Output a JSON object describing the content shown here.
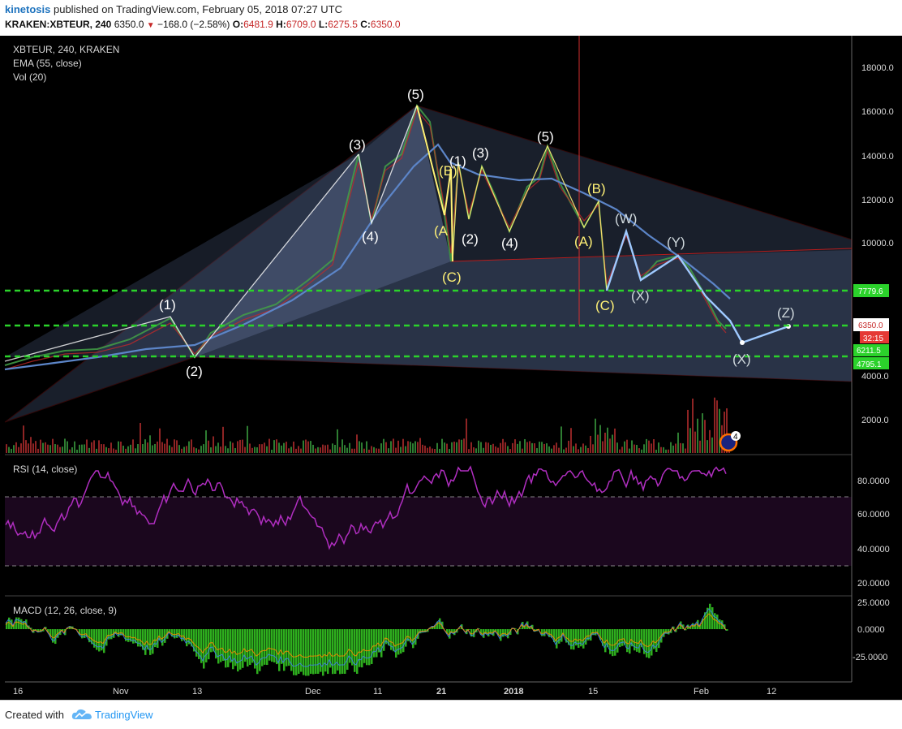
{
  "header": {
    "author": "kinetosis",
    "published": "published on TradingView.com, February 05, 2018 07:27 UTC",
    "symbol": "KRAKEN:XBTEUR, 240",
    "last": "6350.0",
    "change": "−168.0 (−2.58%)",
    "o_label": "O:",
    "o": "6481.9",
    "h_label": "H:",
    "h": "6709.0",
    "l_label": "L:",
    "l": "6275.5",
    "c_label": "C:",
    "c": "6350.0"
  },
  "legend": {
    "line1": "XBTEUR, 240, KRAKEN",
    "line2": "EMA (55, close)",
    "line3": "Vol (20)",
    "rsi": "RSI (14, close)",
    "macd": "MACD (12, 26, close, 9)"
  },
  "price_axis": [
    "18000.0",
    "16000.0",
    "14000.0",
    "12000.0",
    "10000.0",
    "4000.0",
    "2000.0"
  ],
  "price_tags": {
    "level_7779": "7779.6",
    "last": "6350.0",
    "countdown": "32:15",
    "level_6211": "6211.5",
    "level_4795": "4795.1"
  },
  "rsi_axis": [
    "80.0000",
    "60.0000",
    "40.0000",
    "20.0000"
  ],
  "macd_axis": [
    "25.0000",
    "0.0000",
    "-25.0000"
  ],
  "time_axis": [
    "16",
    "Nov",
    "13",
    "Dec",
    "11",
    "21",
    "2018",
    "15",
    "Feb",
    "12"
  ],
  "waves": {
    "w1": "(1)",
    "w2": "(2)",
    "w3": "(3)",
    "w4": "(4)",
    "w5": "(5)",
    "A": "(A",
    "B": "(B)",
    "C": "(C)",
    "s1": "(1)",
    "s2": "(2)",
    "s3": "(3)",
    "s4": "(4)",
    "s5": "(5)",
    "A2": "(A)",
    "B2": "(B)",
    "C2": "(C)",
    "W": "(W)",
    "X1": "(X)",
    "Y": "(Y)",
    "X2": "(X)",
    "Z": "(Z)"
  },
  "badge": "4",
  "footer": {
    "created": "Created with",
    "brand": "TradingView"
  },
  "colors": {
    "background": "#000000",
    "channel_fill": "#5b6f9c",
    "channel_edge": "#b71c1c",
    "ema": "#5c85c8",
    "wave_path": "#9ec9ff",
    "support": "#2bd22b",
    "rsi": "#b02ec0",
    "macd_hist": "#2eae1e"
  }
}
